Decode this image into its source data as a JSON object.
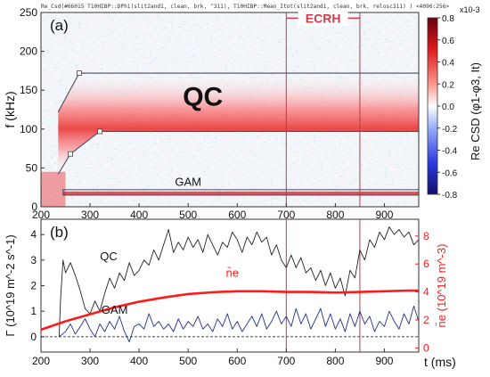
{
  "header": {
    "title": "Re_Csd(#66015 T10HIBP::DPhi(slit2and1, clean, brk, ^311), T10HIBP::Mean_Itot(slit2and1, clean, brk, relosc311) ) <4096:256>"
  },
  "colors": {
    "qc_curve": "#222222",
    "gam_curve": "#1f2f8f",
    "density_curve": "#ff1a1a",
    "marker_line": "#b0404a",
    "ecrh_text": "#d43a4a"
  },
  "chart_data": [
    {
      "type": "heatmap",
      "panel_label": "(a)",
      "ylabel": "f (kHz)",
      "xlim": [
        200,
        970
      ],
      "ylim": [
        0,
        250
      ],
      "xticks": [
        200,
        300,
        400,
        500,
        600,
        700,
        800,
        900
      ],
      "yticks": [
        0,
        50,
        100,
        150,
        200,
        250
      ],
      "colorbar": {
        "label": "Re CSD (φ1-φ3, It)",
        "multiplier": "x10-3",
        "range": [
          -0.8,
          0.8
        ],
        "ticks": [
          0.8,
          0.6,
          0.4,
          0.2,
          0.0,
          -0.2,
          -0.4,
          -0.6,
          -0.8
        ],
        "colormap": "blue-white-red"
      },
      "annotations": [
        {
          "text": "QC",
          "x": 530,
          "y": 130
        },
        {
          "text": "GAM",
          "x": 500,
          "y": 27
        },
        {
          "text": "ECRH",
          "x": 775,
          "y": 237
        }
      ],
      "qc_band": {
        "upper": [
          [
            235,
            122
          ],
          [
            278,
            172
          ],
          [
            300,
            172
          ],
          [
            970,
            172
          ]
        ],
        "lower": [
          [
            235,
            42
          ],
          [
            260,
            68
          ],
          [
            320,
            97
          ],
          [
            970,
            97
          ]
        ]
      },
      "gam_band": {
        "x_from": 245,
        "x_to": 970,
        "f_low": 15,
        "f_high": 22
      },
      "ecrh_window": [
        700,
        850
      ]
    },
    {
      "type": "line",
      "panel_label": "(b)",
      "xlabel": "t (ms)",
      "ylabel_left": "Γ (10^19 m^-2 s^-1)",
      "ylabel_right": "n̄e (10^19 m^-3)",
      "xlim": [
        200,
        970
      ],
      "ylim_left": [
        -0.6,
        4.6
      ],
      "ylim_right": [
        -0.3,
        9.2
      ],
      "xticks": [
        200,
        300,
        400,
        500,
        600,
        700,
        800,
        900
      ],
      "yticks_left": [
        0,
        1,
        2,
        3,
        4
      ],
      "yticks_right": [
        0,
        2,
        4,
        6,
        8
      ],
      "series": [
        {
          "name": "QC",
          "axis": "left",
          "x": [
            237,
            240,
            245,
            250,
            260,
            270,
            280,
            290,
            300,
            310,
            320,
            330,
            340,
            350,
            360,
            370,
            380,
            390,
            400,
            410,
            420,
            430,
            440,
            450,
            460,
            470,
            480,
            490,
            500,
            510,
            520,
            530,
            540,
            550,
            560,
            570,
            580,
            590,
            600,
            610,
            620,
            630,
            640,
            650,
            660,
            670,
            680,
            690,
            700,
            710,
            720,
            730,
            740,
            750,
            760,
            770,
            780,
            790,
            800,
            810,
            820,
            830,
            840,
            850,
            860,
            870,
            880,
            890,
            900,
            910,
            920,
            930,
            940,
            950,
            960,
            970
          ],
          "values": [
            0,
            1.5,
            3.0,
            2.5,
            2.9,
            2.4,
            1.8,
            1.1,
            0.9,
            1.4,
            1.0,
            1.7,
            2.3,
            1.9,
            2.5,
            2.2,
            2.9,
            2.4,
            2.6,
            3.0,
            2.8,
            3.4,
            3.0,
            3.6,
            4.2,
            3.3,
            3.7,
            3.4,
            3.9,
            3.5,
            3.8,
            3.3,
            4.0,
            3.6,
            3.2,
            3.7,
            3.5,
            4.1,
            3.8,
            3.3,
            3.9,
            3.6,
            4.1,
            3.7,
            3.9,
            3.2,
            3.6,
            3.0,
            2.7,
            3.2,
            2.7,
            3.1,
            2.5,
            2.7,
            2.2,
            2.6,
            2.0,
            2.5,
            1.9,
            2.3,
            1.6,
            2.6,
            2.3,
            3.4,
            3.0,
            3.8,
            3.5,
            4.1,
            3.8,
            4.3,
            4.0,
            4.2,
            3.9,
            4.1,
            3.6,
            3.8
          ]
        },
        {
          "name": "GAM",
          "axis": "left",
          "x": [
            237,
            250,
            260,
            270,
            280,
            290,
            300,
            310,
            320,
            330,
            340,
            350,
            360,
            370,
            380,
            390,
            400,
            410,
            420,
            430,
            440,
            450,
            460,
            470,
            480,
            490,
            500,
            510,
            520,
            530,
            540,
            550,
            560,
            570,
            580,
            590,
            600,
            610,
            620,
            630,
            640,
            650,
            660,
            670,
            680,
            690,
            700,
            710,
            720,
            730,
            740,
            750,
            760,
            770,
            780,
            790,
            800,
            810,
            820,
            830,
            840,
            850,
            860,
            870,
            880,
            890,
            900,
            910,
            920,
            930,
            940,
            950,
            960,
            970
          ],
          "values": [
            0,
            0.2,
            0.5,
            0.1,
            0.4,
            0.7,
            0.3,
            0.0,
            0.5,
            0.2,
            0.6,
            0.3,
            0.8,
            0.2,
            -0.2,
            0.4,
            0.5,
            0.3,
            0.9,
            0.4,
            0.6,
            0.3,
            0.5,
            0.2,
            0.7,
            0.3,
            0.6,
            0.4,
            0.8,
            0.3,
            0.5,
            0.2,
            0.7,
            0.4,
            0.9,
            0.3,
            0.6,
            0.2,
            0.5,
            0.8,
            0.4,
            0.9,
            0.3,
            0.6,
            1.0,
            0.5,
            0.8,
            0.4,
            1.1,
            0.5,
            0.9,
            0.3,
            0.7,
            1.1,
            0.4,
            0.9,
            0.3,
            0.7,
            0.2,
            0.9,
            0.4,
            1.0,
            0.5,
            0.8,
            0.2,
            0.6,
            0.4,
            1.0,
            0.6,
            0.3,
            0.9,
            0.5,
            1.2,
            0.6
          ]
        },
        {
          "name": "n̄e",
          "axis": "right",
          "x": [
            200,
            250,
            300,
            350,
            400,
            450,
            500,
            550,
            600,
            650,
            700,
            750,
            800,
            850,
            900,
            950,
            970
          ],
          "values": [
            1.3,
            1.9,
            2.4,
            2.9,
            3.3,
            3.6,
            3.85,
            3.98,
            4.05,
            4.05,
            4.0,
            4.0,
            3.95,
            4.0,
            4.05,
            4.1,
            4.1
          ]
        }
      ],
      "annotations": [
        {
          "text": "QC",
          "x": 338,
          "y": 3.0
        },
        {
          "text": "GAM",
          "x": 350,
          "y": 0.9
        },
        {
          "text": "n̄e",
          "x": 590,
          "y": 2.35
        }
      ],
      "zero_line": 0,
      "marker_lines": [
        700,
        850
      ]
    }
  ]
}
